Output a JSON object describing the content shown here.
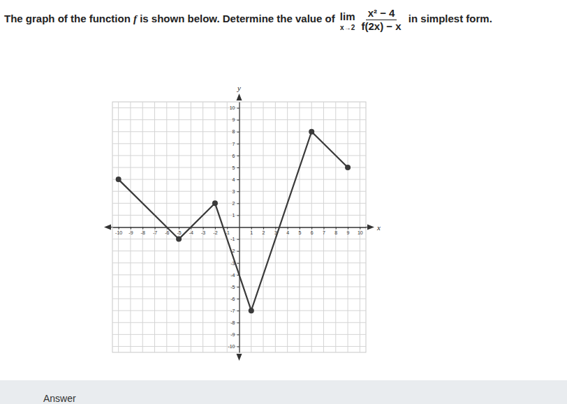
{
  "question": {
    "intro": "The graph of the function ",
    "fn": "f",
    "mid": " is shown below. Determine the value of ",
    "lim": "lim",
    "lim_sub": "x→2",
    "numerator": "x² − 4",
    "denominator": "f(2x) − x",
    "end": " in simplest form."
  },
  "answer_label": "Answer",
  "chart_data": {
    "type": "line",
    "x_label": "x",
    "y_label": "y",
    "x": [
      -10,
      -5,
      -2,
      1,
      6,
      9
    ],
    "series": [
      {
        "values": [
          4,
          -1,
          2,
          -7,
          8,
          5
        ],
        "color": "#3a3a3a",
        "marker": "circle"
      }
    ],
    "xlim": [
      -10.5,
      10.5
    ],
    "ylim": [
      -10.5,
      10.5
    ],
    "xticks": [
      -10,
      -9,
      -8,
      -7,
      -6,
      -5,
      -4,
      -3,
      -2,
      -1,
      1,
      2,
      3,
      4,
      5,
      6,
      7,
      8,
      9,
      10
    ],
    "yticks": [
      -10,
      -9,
      -8,
      -7,
      -6,
      -5,
      -4,
      -3,
      -2,
      -1,
      1,
      2,
      3,
      4,
      5,
      6,
      7,
      8,
      9,
      10
    ],
    "grid": true
  }
}
